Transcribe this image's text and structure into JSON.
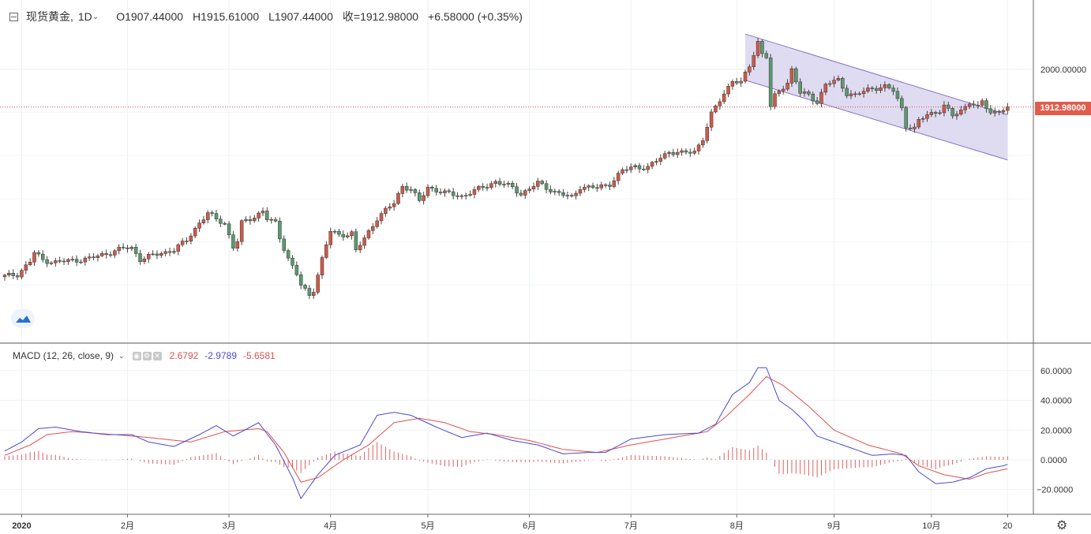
{
  "header": {
    "symbol": "现货黄金,",
    "interval": "1D",
    "open": "O1907.44000",
    "high": "H1915.61000",
    "low": "L1907.44000",
    "close": "收=1912.98000",
    "change": "+6.58000 (+0.35%)"
  },
  "macd_header": {
    "label": "MACD (12, 26, close, 9)",
    "hist_value": "2.6792",
    "macd_value": "-2.9789",
    "signal_value": "-5.6581"
  },
  "last_price_label": "1912.98000",
  "colors": {
    "up": "#d05a48",
    "down": "#5d9a6e",
    "channel_fill": "#d9d5ee",
    "channel_line": "#8a73c4",
    "macd_line": "#4a4ad0",
    "signal_line": "#e05050",
    "hist": "#e06060",
    "price_line": "#d05a48"
  },
  "chart_data": [
    {
      "type": "candlestick",
      "title": "现货黄金",
      "interval": "1D",
      "x_ticks": [
        "2020",
        "2月",
        "3月",
        "4月",
        "5月",
        "6月",
        "7月",
        "8月",
        "9月",
        "10月",
        "20"
      ],
      "y_ticks": [
        "2000.00000"
      ],
      "last_price": 1912.98,
      "anchors": [
        {
          "d": 0,
          "v": 1520
        },
        {
          "d": 3,
          "v": 1525
        },
        {
          "d": 6,
          "v": 1554
        },
        {
          "d": 7,
          "v": 1575
        },
        {
          "d": 9,
          "v": 1558
        },
        {
          "d": 12,
          "v": 1553
        },
        {
          "d": 20,
          "v": 1561
        },
        {
          "d": 28,
          "v": 1585
        },
        {
          "d": 30,
          "v": 1586
        },
        {
          "d": 32,
          "v": 1560
        },
        {
          "d": 40,
          "v": 1582
        },
        {
          "d": 43,
          "v": 1603
        },
        {
          "d": 46,
          "v": 1645
        },
        {
          "d": 48,
          "v": 1666
        },
        {
          "d": 50,
          "v": 1652
        },
        {
          "d": 52,
          "v": 1643
        },
        {
          "d": 54,
          "v": 1588
        },
        {
          "d": 55,
          "v": 1601
        },
        {
          "d": 56,
          "v": 1643
        },
        {
          "d": 59,
          "v": 1659
        },
        {
          "d": 61,
          "v": 1672
        },
        {
          "d": 62,
          "v": 1653
        },
        {
          "d": 64,
          "v": 1643
        },
        {
          "d": 65,
          "v": 1610
        },
        {
          "d": 67,
          "v": 1562
        },
        {
          "d": 69,
          "v": 1525
        },
        {
          "d": 70,
          "v": 1498
        },
        {
          "d": 71,
          "v": 1487
        },
        {
          "d": 72,
          "v": 1476
        },
        {
          "d": 73,
          "v": 1490
        },
        {
          "d": 75,
          "v": 1560
        },
        {
          "d": 77,
          "v": 1625
        },
        {
          "d": 79,
          "v": 1616
        },
        {
          "d": 82,
          "v": 1620
        },
        {
          "d": 83,
          "v": 1578
        },
        {
          "d": 85,
          "v": 1608
        },
        {
          "d": 88,
          "v": 1655
        },
        {
          "d": 92,
          "v": 1690
        },
        {
          "d": 94,
          "v": 1730
        },
        {
          "d": 96,
          "v": 1722
        },
        {
          "d": 98,
          "v": 1693
        },
        {
          "d": 100,
          "v": 1727
        },
        {
          "d": 104,
          "v": 1713
        },
        {
          "d": 108,
          "v": 1706
        },
        {
          "d": 112,
          "v": 1722
        },
        {
          "d": 116,
          "v": 1740
        },
        {
          "d": 118,
          "v": 1733
        },
        {
          "d": 120,
          "v": 1726
        },
        {
          "d": 122,
          "v": 1711
        },
        {
          "d": 126,
          "v": 1736
        },
        {
          "d": 130,
          "v": 1716
        },
        {
          "d": 134,
          "v": 1702
        },
        {
          "d": 136,
          "v": 1728
        },
        {
          "d": 140,
          "v": 1725
        },
        {
          "d": 143,
          "v": 1735
        },
        {
          "d": 146,
          "v": 1765
        },
        {
          "d": 149,
          "v": 1775
        },
        {
          "d": 152,
          "v": 1772
        },
        {
          "d": 155,
          "v": 1795
        },
        {
          "d": 157,
          "v": 1810
        },
        {
          "d": 160,
          "v": 1805
        },
        {
          "d": 163,
          "v": 1810
        },
        {
          "d": 165,
          "v": 1840
        },
        {
          "d": 167,
          "v": 1895
        },
        {
          "d": 170,
          "v": 1945
        },
        {
          "d": 172,
          "v": 1975
        },
        {
          "d": 174,
          "v": 1968
        },
        {
          "d": 176,
          "v": 2008
        },
        {
          "d": 178,
          "v": 2065
        },
        {
          "d": 179,
          "v": 2037
        },
        {
          "d": 180,
          "v": 2030
        },
        {
          "d": 181,
          "v": 1912
        },
        {
          "d": 182,
          "v": 1937
        },
        {
          "d": 183,
          "v": 1950
        },
        {
          "d": 185,
          "v": 1970
        },
        {
          "d": 186,
          "v": 2000
        },
        {
          "d": 188,
          "v": 1945
        },
        {
          "d": 190,
          "v": 1940
        },
        {
          "d": 192,
          "v": 1925
        },
        {
          "d": 194,
          "v": 1965
        },
        {
          "d": 197,
          "v": 1975
        },
        {
          "d": 199,
          "v": 1945
        },
        {
          "d": 201,
          "v": 1940
        },
        {
          "d": 205,
          "v": 1957
        },
        {
          "d": 208,
          "v": 1960
        },
        {
          "d": 210,
          "v": 1950
        },
        {
          "d": 212,
          "v": 1910
        },
        {
          "d": 213,
          "v": 1870
        },
        {
          "d": 215,
          "v": 1862
        },
        {
          "d": 216,
          "v": 1880
        },
        {
          "d": 218,
          "v": 1895
        },
        {
          "d": 221,
          "v": 1905
        },
        {
          "d": 222,
          "v": 1915
        },
        {
          "d": 224,
          "v": 1892
        },
        {
          "d": 226,
          "v": 1905
        },
        {
          "d": 228,
          "v": 1925
        },
        {
          "d": 230,
          "v": 1910
        },
        {
          "d": 231,
          "v": 1925
        },
        {
          "d": 233,
          "v": 1900
        },
        {
          "d": 236,
          "v": 1907
        },
        {
          "d": 237,
          "v": 1913
        }
      ],
      "channel": {
        "upper": [
          {
            "d": 175,
            "v": 2082
          },
          {
            "d": 237,
            "v": 1895
          }
        ],
        "lower": [
          {
            "d": 175,
            "v": 1975
          },
          {
            "d": 237,
            "v": 1790
          }
        ]
      }
    },
    {
      "type": "macd",
      "title": "MACD (12, 26, close, 9)",
      "y_ticks": [
        60,
        40,
        20,
        0,
        -20
      ],
      "macd_anchors": [
        {
          "d": 0,
          "v": 6
        },
        {
          "d": 4,
          "v": 12
        },
        {
          "d": 8,
          "v": 21
        },
        {
          "d": 12,
          "v": 22
        },
        {
          "d": 18,
          "v": 19
        },
        {
          "d": 24,
          "v": 17
        },
        {
          "d": 30,
          "v": 17
        },
        {
          "d": 34,
          "v": 12
        },
        {
          "d": 40,
          "v": 9
        },
        {
          "d": 46,
          "v": 17
        },
        {
          "d": 50,
          "v": 23
        },
        {
          "d": 54,
          "v": 16
        },
        {
          "d": 60,
          "v": 25
        },
        {
          "d": 64,
          "v": 10
        },
        {
          "d": 68,
          "v": -12
        },
        {
          "d": 70,
          "v": -26
        },
        {
          "d": 74,
          "v": -10
        },
        {
          "d": 78,
          "v": 3
        },
        {
          "d": 84,
          "v": 10
        },
        {
          "d": 88,
          "v": 30
        },
        {
          "d": 92,
          "v": 32
        },
        {
          "d": 96,
          "v": 30
        },
        {
          "d": 102,
          "v": 22
        },
        {
          "d": 108,
          "v": 15
        },
        {
          "d": 114,
          "v": 18
        },
        {
          "d": 120,
          "v": 13
        },
        {
          "d": 126,
          "v": 10
        },
        {
          "d": 132,
          "v": 4
        },
        {
          "d": 138,
          "v": 5
        },
        {
          "d": 142,
          "v": 5
        },
        {
          "d": 148,
          "v": 14
        },
        {
          "d": 156,
          "v": 17
        },
        {
          "d": 164,
          "v": 18
        },
        {
          "d": 168,
          "v": 24
        },
        {
          "d": 172,
          "v": 44
        },
        {
          "d": 176,
          "v": 52
        },
        {
          "d": 178,
          "v": 62
        },
        {
          "d": 180,
          "v": 62
        },
        {
          "d": 183,
          "v": 40
        },
        {
          "d": 186,
          "v": 34
        },
        {
          "d": 189,
          "v": 26
        },
        {
          "d": 192,
          "v": 16
        },
        {
          "d": 198,
          "v": 10
        },
        {
          "d": 205,
          "v": 3
        },
        {
          "d": 210,
          "v": 4
        },
        {
          "d": 213,
          "v": 3
        },
        {
          "d": 216,
          "v": -8
        },
        {
          "d": 220,
          "v": -16
        },
        {
          "d": 224,
          "v": -15
        },
        {
          "d": 228,
          "v": -12
        },
        {
          "d": 232,
          "v": -6
        },
        {
          "d": 236,
          "v": -4
        },
        {
          "d": 237,
          "v": -3
        }
      ],
      "signal_anchors": [
        {
          "d": 0,
          "v": 3
        },
        {
          "d": 6,
          "v": 10
        },
        {
          "d": 10,
          "v": 17
        },
        {
          "d": 16,
          "v": 19
        },
        {
          "d": 26,
          "v": 17
        },
        {
          "d": 34,
          "v": 15
        },
        {
          "d": 44,
          "v": 12
        },
        {
          "d": 52,
          "v": 19
        },
        {
          "d": 60,
          "v": 21
        },
        {
          "d": 62,
          "v": 19
        },
        {
          "d": 66,
          "v": 5
        },
        {
          "d": 70,
          "v": -15
        },
        {
          "d": 74,
          "v": -12
        },
        {
          "d": 80,
          "v": 0
        },
        {
          "d": 86,
          "v": 10
        },
        {
          "d": 92,
          "v": 25
        },
        {
          "d": 98,
          "v": 28
        },
        {
          "d": 104,
          "v": 25
        },
        {
          "d": 110,
          "v": 19
        },
        {
          "d": 116,
          "v": 17
        },
        {
          "d": 124,
          "v": 13
        },
        {
          "d": 132,
          "v": 7
        },
        {
          "d": 140,
          "v": 5
        },
        {
          "d": 148,
          "v": 10
        },
        {
          "d": 158,
          "v": 15
        },
        {
          "d": 166,
          "v": 19
        },
        {
          "d": 170,
          "v": 28
        },
        {
          "d": 176,
          "v": 44
        },
        {
          "d": 180,
          "v": 56
        },
        {
          "d": 184,
          "v": 50
        },
        {
          "d": 190,
          "v": 36
        },
        {
          "d": 196,
          "v": 20
        },
        {
          "d": 204,
          "v": 10
        },
        {
          "d": 212,
          "v": 4
        },
        {
          "d": 216,
          "v": -4
        },
        {
          "d": 222,
          "v": -10
        },
        {
          "d": 228,
          "v": -13
        },
        {
          "d": 232,
          "v": -9
        },
        {
          "d": 237,
          "v": -6
        }
      ]
    }
  ]
}
